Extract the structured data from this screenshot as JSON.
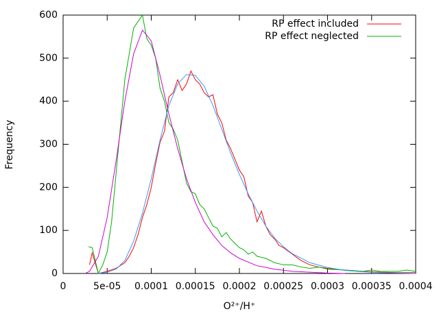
{
  "chart_data": {
    "type": "line",
    "x_label": "O²⁺/H⁺",
    "y_label": "Frequency",
    "xlim": [
      0,
      0.0004
    ],
    "ylim": [
      0,
      600
    ],
    "xticks": [
      0,
      {
        "value": 5e-05,
        "label": "5e-05"
      },
      0.0001,
      0.00015,
      0.0002,
      0.00025,
      0.0003,
      0.00035,
      0.0004
    ],
    "yticks": [
      0,
      100,
      200,
      300,
      400,
      500,
      600
    ],
    "legend": "top-right",
    "series": [
      {
        "name": "RP effect included",
        "color": "#ff0000",
        "x": [
          3e-05,
          3.3e-05,
          4e-05,
          5e-05,
          6e-05,
          7e-05,
          7.5e-05,
          8e-05,
          8.5e-05,
          9e-05,
          9.5e-05,
          0.0001,
          0.000105,
          0.00011,
          0.000115,
          0.00012,
          0.000125,
          0.00013,
          0.000135,
          0.00014,
          0.000145,
          0.00015,
          0.000155,
          0.00016,
          0.000165,
          0.00017,
          0.000175,
          0.00018,
          0.000185,
          0.00019,
          0.000195,
          0.0002,
          0.000205,
          0.00021,
          0.000215,
          0.00022,
          0.000225,
          0.00023,
          0.000235,
          0.00024,
          0.000245,
          0.00025,
          0.00026,
          0.00027,
          0.00028,
          0.00029,
          0.0003,
          0.00032,
          0.00034,
          0.00036,
          0.00038,
          0.0004
        ],
        "values": [
          20,
          48,
          0,
          5,
          12,
          25,
          40,
          60,
          90,
          130,
          160,
          200,
          255,
          305,
          330,
          410,
          420,
          450,
          425,
          440,
          470,
          450,
          440,
          420,
          410,
          415,
          370,
          350,
          310,
          290,
          265,
          240,
          225,
          180,
          165,
          120,
          145,
          110,
          90,
          80,
          65,
          60,
          45,
          30,
          20,
          15,
          12,
          8,
          5,
          3,
          2,
          2
        ]
      },
      {
        "name": "RP effect neglected",
        "color": "#00b000",
        "x": [
          2.9e-05,
          3.3e-05,
          4e-05,
          4.5e-05,
          5e-05,
          5.5e-05,
          6e-05,
          6.5e-05,
          7e-05,
          7.5e-05,
          8e-05,
          8.5e-05,
          9e-05,
          9.5e-05,
          0.0001,
          0.000105,
          0.00011,
          0.000115,
          0.00012,
          0.000125,
          0.00013,
          0.000135,
          0.00014,
          0.000145,
          0.00015,
          0.000155,
          0.00016,
          0.000165,
          0.00017,
          0.000175,
          0.00018,
          0.000185,
          0.00019,
          0.000195,
          0.0002,
          0.000205,
          0.00021,
          0.000215,
          0.00022,
          0.00023,
          0.00024,
          0.00025,
          0.00026,
          0.00027,
          0.00028,
          0.00029,
          0.0003,
          0.00032,
          0.00034,
          0.00035,
          0.00036,
          0.00038,
          0.00039,
          0.0004
        ],
        "values": [
          62,
          60,
          0,
          20,
          50,
          120,
          230,
          340,
          450,
          510,
          570,
          585,
          600,
          545,
          530,
          500,
          430,
          400,
          350,
          335,
          310,
          260,
          210,
          190,
          185,
          160,
          150,
          130,
          110,
          105,
          85,
          95,
          80,
          70,
          60,
          55,
          45,
          50,
          40,
          35,
          25,
          20,
          20,
          15,
          12,
          15,
          10,
          8,
          5,
          8,
          5,
          5,
          8,
          5
        ]
      },
      {
        "color": "#cc00cc",
        "x": [
          2.5e-05,
          3e-05,
          4e-05,
          5e-05,
          6e-05,
          7e-05,
          8e-05,
          9e-05,
          0.0001,
          0.00011,
          0.00012,
          0.00013,
          0.00014,
          0.00015,
          0.00016,
          0.00017,
          0.00018,
          0.00019,
          0.0002,
          0.00022,
          0.00024,
          0.00026,
          0.00028,
          0.0003,
          0.00032
        ],
        "values": [
          0,
          5,
          40,
          130,
          260,
          400,
          510,
          565,
          540,
          460,
          370,
          290,
          220,
          165,
          120,
          90,
          65,
          48,
          35,
          18,
          10,
          5,
          3,
          1,
          0
        ]
      },
      {
        "color": "#3399ff",
        "x": [
          4e-05,
          5e-05,
          6e-05,
          7e-05,
          8e-05,
          9e-05,
          0.0001,
          0.00011,
          0.00012,
          0.00013,
          0.00014,
          0.00015,
          0.00016,
          0.00017,
          0.00018,
          0.00019,
          0.0002,
          0.00021,
          0.00022,
          0.00023,
          0.00024,
          0.00025,
          0.00026,
          0.00028,
          0.0003,
          0.00032,
          0.00034,
          0.00036,
          0.0004
        ],
        "values": [
          0,
          3,
          10,
          30,
          75,
          140,
          220,
          310,
          390,
          440,
          462,
          460,
          435,
          390,
          335,
          280,
          230,
          185,
          145,
          110,
          82,
          62,
          46,
          25,
          14,
          7,
          4,
          2,
          0
        ]
      }
    ]
  }
}
